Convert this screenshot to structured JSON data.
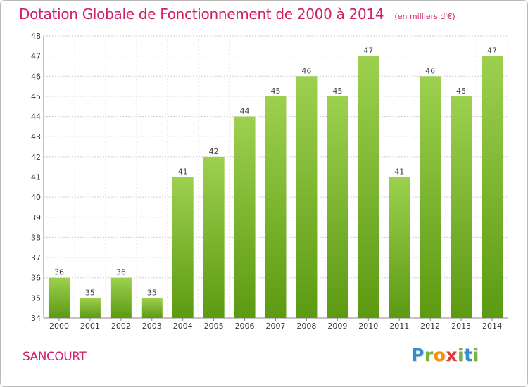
{
  "header": {
    "title": "Dotation Globale de Fonctionnement de 2000 à 2014",
    "unit": "(en milliers d'€)"
  },
  "footer": {
    "commune": "SANCOURT",
    "logo_letters": [
      "P",
      "r",
      "o",
      "x",
      "i",
      "t",
      "i"
    ]
  },
  "colors": {
    "accent": "#d11f6a",
    "bar_top": "#9dd04f",
    "bar_bottom": "#5c9a12",
    "grid": "#cfcfcf"
  },
  "chart_data": {
    "type": "bar",
    "title": "Dotation Globale de Fonctionnement de 2000 à 2014",
    "subtitle": "(en milliers d'€)",
    "xlabel": "",
    "ylabel": "",
    "categories": [
      "2000",
      "2001",
      "2002",
      "2003",
      "2004",
      "2005",
      "2006",
      "2007",
      "2008",
      "2009",
      "2010",
      "2011",
      "2012",
      "2013",
      "2014"
    ],
    "values": [
      36,
      35,
      36,
      35,
      41,
      42,
      44,
      45,
      46,
      45,
      47,
      41,
      46,
      45,
      47
    ],
    "ylim": [
      34,
      48
    ],
    "yticks": [
      34,
      35,
      36,
      37,
      38,
      39,
      40,
      41,
      42,
      43,
      44,
      45,
      46,
      47,
      48
    ],
    "grid": true,
    "data_labels": true,
    "legend": "none"
  }
}
